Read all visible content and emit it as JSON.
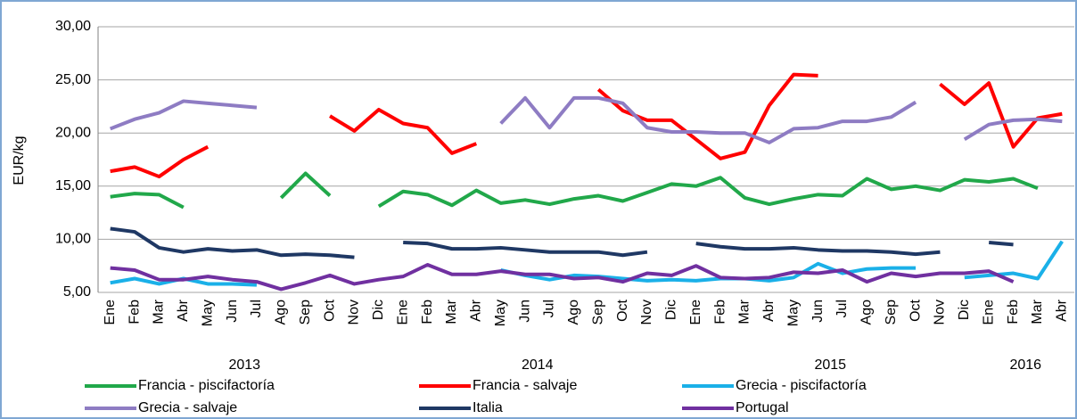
{
  "chart_data": {
    "type": "line",
    "y_label": "EUR/kg",
    "categories": [
      "Ene",
      "Feb",
      "Mar",
      "Abr",
      "May",
      "Jun",
      "Jul",
      "Ago",
      "Sep",
      "Oct",
      "Nov",
      "Dic",
      "Ene",
      "Feb",
      "Mar",
      "Abr",
      "May",
      "Jun",
      "Jul",
      "Ago",
      "Sep",
      "Oct",
      "Nov",
      "Dic",
      "Ene",
      "Feb",
      "Mar",
      "Abr",
      "May",
      "Jun",
      "Jul",
      "Ago",
      "Sep",
      "Oct",
      "Nov",
      "Dic",
      "Ene",
      "Feb",
      "Mar",
      "Abr"
    ],
    "year_groups": [
      {
        "label": "2013",
        "months": 12
      },
      {
        "label": "2014",
        "months": 12
      },
      {
        "label": "2015",
        "months": 12
      },
      {
        "label": "2016",
        "months": 4
      }
    ],
    "ylim": [
      5,
      30
    ],
    "yticks": [
      {
        "value": 5,
        "label": "5,00"
      },
      {
        "value": 10,
        "label": "10,00"
      },
      {
        "value": 15,
        "label": "15,00"
      },
      {
        "value": 20,
        "label": "20,00"
      },
      {
        "value": 25,
        "label": "25,00"
      },
      {
        "value": 30,
        "label": "30,00"
      }
    ],
    "grid": true,
    "legend_position": "bottom",
    "series": [
      {
        "name": "Francia - piscifactoría",
        "color": "#21a84a",
        "values": [
          14.0,
          14.3,
          14.2,
          13.0,
          null,
          null,
          null,
          13.9,
          16.2,
          14.1,
          null,
          13.1,
          14.5,
          14.2,
          13.2,
          14.6,
          13.4,
          13.7,
          13.3,
          13.8,
          14.1,
          13.6,
          14.4,
          15.2,
          15.0,
          15.8,
          13.9,
          13.3,
          13.8,
          14.2,
          14.1,
          15.7,
          14.7,
          15.0,
          14.6,
          15.6,
          15.4,
          15.7,
          14.8,
          null
        ]
      },
      {
        "name": "Francia - salvaje",
        "color": "#ff0000",
        "values": [
          16.4,
          16.8,
          15.9,
          17.5,
          18.7,
          null,
          null,
          null,
          null,
          21.6,
          20.2,
          22.2,
          20.9,
          20.5,
          18.1,
          19.0,
          null,
          null,
          null,
          null,
          24.1,
          22.1,
          21.2,
          21.2,
          19.4,
          17.6,
          18.2,
          22.6,
          25.5,
          25.4,
          null,
          null,
          null,
          null,
          24.6,
          22.7,
          24.7,
          18.7,
          21.4,
          21.8
        ]
      },
      {
        "name": "Grecia - piscifactoría",
        "color": "#1ab0e8",
        "values": [
          5.9,
          6.3,
          5.8,
          6.3,
          5.8,
          5.8,
          5.7,
          null,
          null,
          null,
          null,
          null,
          null,
          null,
          null,
          null,
          7.1,
          6.6,
          6.2,
          6.6,
          6.5,
          6.3,
          6.1,
          6.2,
          6.1,
          6.3,
          6.3,
          6.1,
          6.4,
          7.7,
          6.8,
          7.2,
          7.3,
          7.3,
          null,
          6.4,
          6.6,
          6.8,
          6.3,
          9.8
        ]
      },
      {
        "name": "Grecia - salvaje",
        "color": "#8e7cc3",
        "values": [
          20.4,
          21.3,
          21.9,
          23.0,
          22.8,
          22.6,
          22.4,
          null,
          null,
          null,
          null,
          null,
          null,
          null,
          null,
          null,
          20.9,
          23.3,
          20.5,
          23.3,
          23.3,
          22.8,
          20.5,
          20.1,
          20.1,
          20.0,
          20.0,
          19.1,
          20.4,
          20.5,
          21.1,
          21.1,
          21.5,
          22.9,
          null,
          19.4,
          20.8,
          21.2,
          21.3,
          21.1
        ]
      },
      {
        "name": "Italia",
        "color": "#1f3864",
        "values": [
          11.0,
          10.7,
          9.2,
          8.8,
          9.1,
          8.9,
          9.0,
          8.5,
          8.6,
          8.5,
          8.3,
          null,
          9.7,
          9.6,
          9.1,
          9.1,
          9.2,
          9.0,
          8.8,
          8.8,
          8.8,
          8.5,
          8.8,
          null,
          9.6,
          9.3,
          9.1,
          9.1,
          9.2,
          9.0,
          8.9,
          8.9,
          8.8,
          8.6,
          8.8,
          null,
          9.7,
          9.5,
          null,
          null
        ]
      },
      {
        "name": "Portugal",
        "color": "#7030a0",
        "values": [
          7.3,
          7.1,
          6.2,
          6.2,
          6.5,
          6.2,
          6.0,
          5.3,
          5.9,
          6.6,
          5.8,
          6.2,
          6.5,
          7.6,
          6.7,
          6.7,
          7.0,
          6.7,
          6.7,
          6.3,
          6.4,
          6.0,
          6.8,
          6.6,
          7.5,
          6.4,
          6.3,
          6.4,
          6.9,
          6.8,
          7.1,
          6.0,
          6.8,
          6.5,
          6.8,
          6.8,
          7.0,
          6.0,
          null,
          null
        ]
      }
    ]
  }
}
